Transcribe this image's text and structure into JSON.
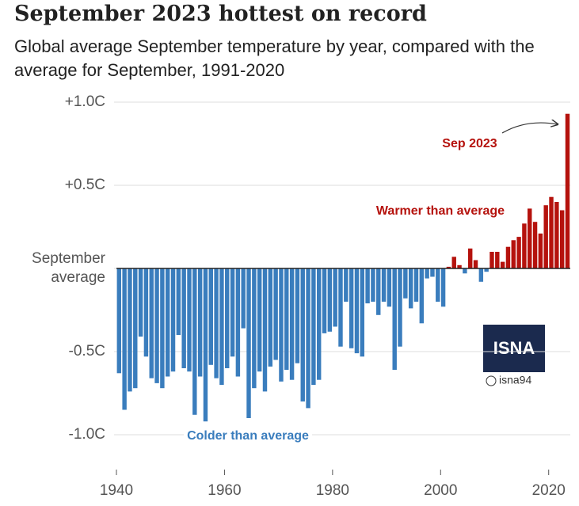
{
  "chart_data": {
    "type": "bar",
    "title": "September 2023 hottest on record",
    "subtitle": "Global average September temperature by year, compared with the average for September, 1991-2020",
    "x": [
      1940,
      1941,
      1942,
      1943,
      1944,
      1945,
      1946,
      1947,
      1948,
      1949,
      1950,
      1951,
      1952,
      1953,
      1954,
      1955,
      1956,
      1957,
      1958,
      1959,
      1960,
      1961,
      1962,
      1963,
      1964,
      1965,
      1966,
      1967,
      1968,
      1969,
      1970,
      1971,
      1972,
      1973,
      1974,
      1975,
      1976,
      1977,
      1978,
      1979,
      1980,
      1981,
      1982,
      1983,
      1984,
      1985,
      1986,
      1987,
      1988,
      1989,
      1990,
      1991,
      1992,
      1993,
      1994,
      1995,
      1996,
      1997,
      1998,
      1999,
      2000,
      2001,
      2002,
      2003,
      2004,
      2005,
      2006,
      2007,
      2008,
      2009,
      2010,
      2011,
      2012,
      2013,
      2014,
      2015,
      2016,
      2017,
      2018,
      2019,
      2020,
      2021,
      2022,
      2023
    ],
    "values": [
      -0.63,
      -0.85,
      -0.74,
      -0.72,
      -0.41,
      -0.53,
      -0.66,
      -0.69,
      -0.72,
      -0.65,
      -0.62,
      -0.4,
      -0.6,
      -0.62,
      -0.88,
      -0.65,
      -0.92,
      -0.58,
      -0.66,
      -0.7,
      -0.6,
      -0.53,
      -0.65,
      -0.36,
      -0.9,
      -0.72,
      -0.62,
      -0.74,
      -0.59,
      -0.55,
      -0.68,
      -0.61,
      -0.67,
      -0.57,
      -0.8,
      -0.84,
      -0.7,
      -0.67,
      -0.39,
      -0.38,
      -0.35,
      -0.47,
      -0.2,
      -0.48,
      -0.51,
      -0.53,
      -0.21,
      -0.2,
      -0.28,
      -0.2,
      -0.23,
      -0.61,
      -0.47,
      -0.18,
      -0.24,
      -0.2,
      -0.33,
      -0.06,
      -0.05,
      -0.2,
      -0.23,
      0.01,
      0.07,
      0.02,
      -0.03,
      0.12,
      0.05,
      -0.08,
      -0.02,
      0.1,
      0.1,
      0.04,
      0.13,
      0.17,
      0.19,
      0.27,
      0.36,
      0.28,
      0.21,
      0.38,
      0.43,
      0.4,
      0.35,
      0.93
    ],
    "colors": {
      "positive": "#b5120d",
      "negative": "#3a7dbd"
    },
    "xlim": [
      1940,
      2024
    ],
    "xticks": [
      1940,
      1960,
      1980,
      2000,
      2020
    ],
    "ylim": [
      -1.2,
      1.05
    ],
    "yticks": [
      {
        "value": 1.0,
        "label": "+1.0C"
      },
      {
        "value": 0.5,
        "label": "+0.5C"
      },
      {
        "value": 0,
        "label": "September average"
      },
      {
        "value": -0.5,
        "label": "-0.5C"
      },
      {
        "value": -1.0,
        "label": "-1.0C"
      }
    ],
    "grid": true,
    "annotations": [
      "Sep 2023",
      "Warmer than average",
      "Colder than average"
    ]
  },
  "watermark": {
    "logo": "ISNA",
    "handle": "isna94"
  }
}
